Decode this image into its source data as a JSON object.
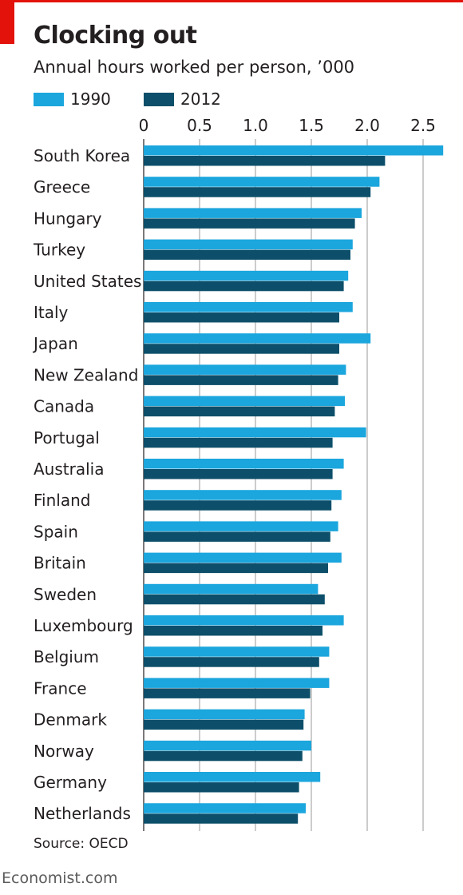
{
  "header": {
    "title": "Clocking out",
    "subtitle": "Annual hours worked per person, ’000"
  },
  "footer": {
    "source": "Source: OECD",
    "brand": "Economist.com"
  },
  "colors": {
    "series_1990": "#1ba6dd",
    "series_2012": "#0d4f6a",
    "accent": "#e3120b",
    "grid": "#cccccc"
  },
  "chart_data": {
    "type": "bar",
    "orientation": "horizontal",
    "title": "Clocking out",
    "subtitle": "Annual hours worked per person, ’000",
    "xlim": [
      0,
      2.7
    ],
    "xticks": [
      "0",
      "0.5",
      "1.0",
      "1.5",
      "2.0",
      "2.5"
    ],
    "xtick_values": [
      0,
      0.5,
      1.0,
      1.5,
      2.0,
      2.5
    ],
    "grid": true,
    "legend_position": "top-left",
    "categories": [
      "South Korea",
      "Greece",
      "Hungary",
      "Turkey",
      "United States",
      "Italy",
      "Japan",
      "New Zealand",
      "Canada",
      "Portugal",
      "Australia",
      "Finland",
      "Spain",
      "Britain",
      "Sweden",
      "Luxembourg",
      "Belgium",
      "France",
      "Denmark",
      "Norway",
      "Germany",
      "Netherlands"
    ],
    "series": [
      {
        "name": "1990",
        "values": [
          2.68,
          2.11,
          1.95,
          1.87,
          1.83,
          1.87,
          2.03,
          1.81,
          1.8,
          1.99,
          1.79,
          1.77,
          1.74,
          1.77,
          1.56,
          1.79,
          1.66,
          1.66,
          1.44,
          1.5,
          1.58,
          1.45
        ]
      },
      {
        "name": "2012",
        "values": [
          2.16,
          2.03,
          1.89,
          1.85,
          1.79,
          1.75,
          1.75,
          1.74,
          1.71,
          1.69,
          1.69,
          1.68,
          1.67,
          1.65,
          1.62,
          1.6,
          1.57,
          1.49,
          1.43,
          1.42,
          1.39,
          1.38
        ]
      }
    ]
  }
}
